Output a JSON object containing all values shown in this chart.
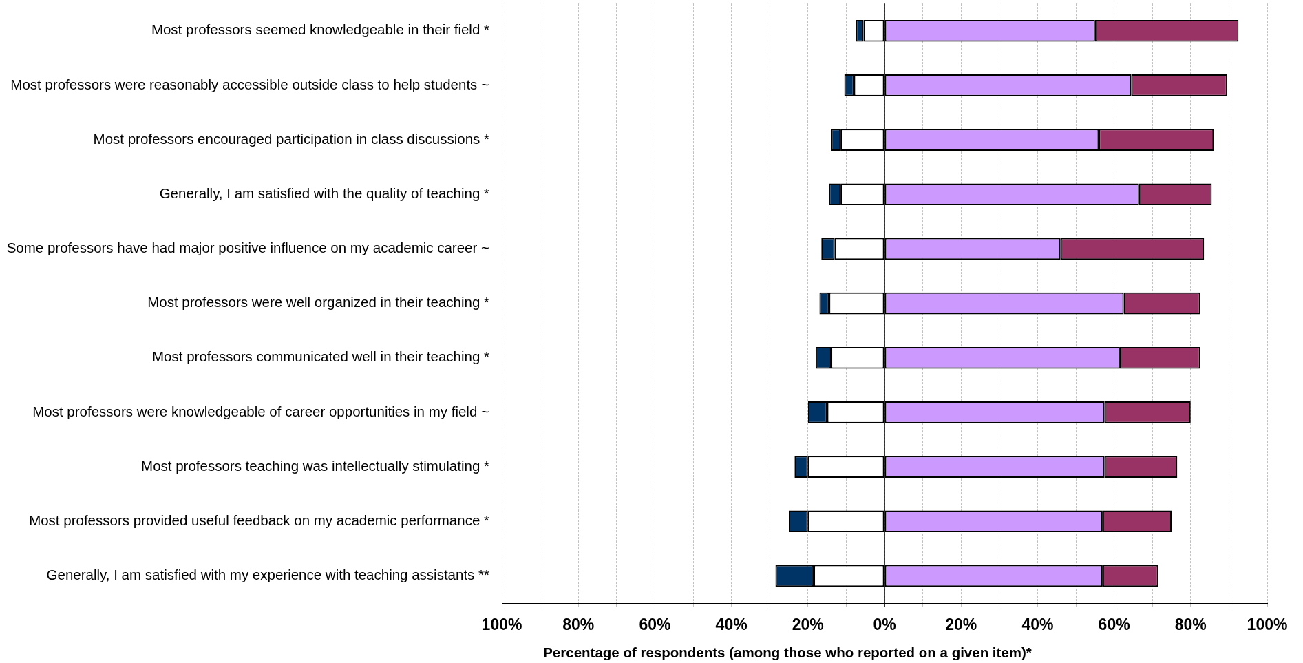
{
  "chart_data": {
    "type": "bar",
    "orientation": "horizontal",
    "stacked": true,
    "xlabel": "Percentage of respondents (among those who reported on a given item)*",
    "categories": [
      "Most professors seemed knowledgeable in their field *",
      "Most professors were reasonably accessible outside class to help students ~",
      "Most professors encouraged participation in class discussions *",
      "Generally, I am satisfied with the quality of teaching *",
      "Some professors have had major positive influence on my academic career ~",
      "Most professors were well organized in their teaching *",
      "Most professors communicated well in their teaching *",
      "Most professors were knowledgeable of career opportunities in my field ~",
      "Most professors teaching was intellectually stimulating *",
      "Most professors provided useful feedback on my academic performance *",
      "Generally, I am satisfied with my experience with teaching assistants **"
    ],
    "series": [
      {
        "color": "#ffffff",
        "values": [
          -5.5,
          -8,
          -11.5,
          -11.5,
          -13,
          -14.5,
          -14,
          -15,
          -20,
          -20,
          -18.5
        ]
      },
      {
        "color": "#003366",
        "values": [
          -2,
          -2.5,
          -2.5,
          -3,
          -3.5,
          -2.5,
          -4,
          -5,
          -3.5,
          -5,
          -10
        ]
      },
      {
        "color": "#cc99ff",
        "values": [
          55,
          64.5,
          56,
          66.5,
          46,
          62.5,
          61.5,
          57.5,
          57.5,
          57,
          57
        ]
      },
      {
        "color": "#993366",
        "values": [
          37.5,
          25,
          30,
          19,
          37.5,
          20,
          21,
          22.5,
          19,
          18,
          14.5
        ]
      }
    ],
    "xlim": [
      -100,
      100
    ],
    "xticks": [
      {
        "value": -100,
        "label": "100%"
      },
      {
        "value": -90,
        "label": null
      },
      {
        "value": -80,
        "label": "80%"
      },
      {
        "value": -70,
        "label": null
      },
      {
        "value": -60,
        "label": "60%"
      },
      {
        "value": -50,
        "label": null
      },
      {
        "value": -40,
        "label": "40%"
      },
      {
        "value": -30,
        "label": null
      },
      {
        "value": -20,
        "label": "20%"
      },
      {
        "value": -10,
        "label": null
      },
      {
        "value": 0,
        "label": "0%"
      },
      {
        "value": 10,
        "label": null
      },
      {
        "value": 20,
        "label": "20%"
      },
      {
        "value": 30,
        "label": null
      },
      {
        "value": 40,
        "label": "40%"
      },
      {
        "value": 50,
        "label": null
      },
      {
        "value": 60,
        "label": "60%"
      },
      {
        "value": 70,
        "label": null
      },
      {
        "value": 80,
        "label": "80%"
      },
      {
        "value": 90,
        "label": null
      },
      {
        "value": 100,
        "label": "100%"
      }
    ],
    "grid": "x"
  }
}
